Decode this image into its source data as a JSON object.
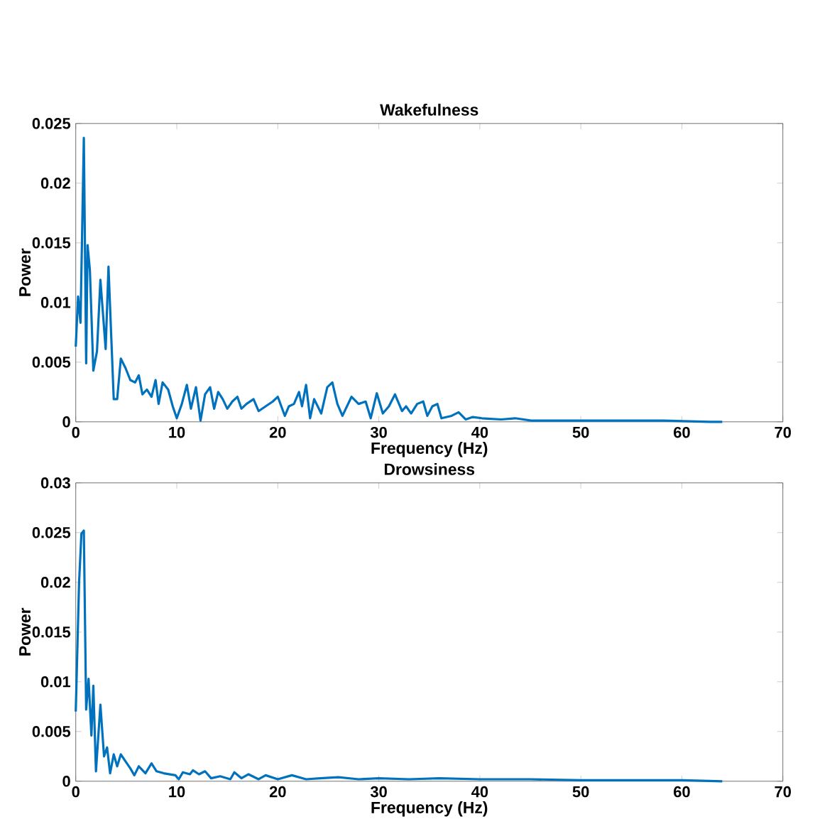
{
  "chart_data": [
    {
      "type": "line",
      "title": "Wakefulness",
      "xlabel": "Frequency (Hz)",
      "ylabel": "Power",
      "x": [
        0,
        0.23,
        0.47,
        0.8,
        1.03,
        1.17,
        1.4,
        1.74,
        2.1,
        2.44,
        2.96,
        3.24,
        3.76,
        4.1,
        4.46,
        4.93,
        5.4,
        5.87,
        6.24,
        6.6,
        7.04,
        7.5,
        7.9,
        8.2,
        8.6,
        9.15,
        9.6,
        10.0,
        10.5,
        11.0,
        11.4,
        11.9,
        12.35,
        12.8,
        13.3,
        13.7,
        14.1,
        14.55,
        15.0,
        15.5,
        16.0,
        16.4,
        16.9,
        17.6,
        18.1,
        18.8,
        19.5,
        20.0,
        20.7,
        21.1,
        21.6,
        22.1,
        22.4,
        22.8,
        23.2,
        23.6,
        24.3,
        24.9,
        25.4,
        25.9,
        26.4,
        27.3,
        28.0,
        28.7,
        29.2,
        29.8,
        30.4,
        31.0,
        31.6,
        32.3,
        32.7,
        33.2,
        33.8,
        34.4,
        34.8,
        35.3,
        35.8,
        36.2,
        37.2,
        37.9,
        38.6,
        39.3,
        40.2,
        42.1,
        43.5,
        45.1,
        47.4,
        49.3,
        53.5,
        58.2,
        62.8,
        64
      ],
      "series": [
        {
          "color": "#0072bd",
          "values": [
            0.0063,
            0.0105,
            0.0083,
            0.0238,
            0.0049,
            0.0148,
            0.0127,
            0.0043,
            0.0059,
            0.0119,
            0.0061,
            0.013,
            0.0019,
            0.0019,
            0.0053,
            0.0045,
            0.0035,
            0.0033,
            0.0039,
            0.0023,
            0.0027,
            0.0021,
            0.0035,
            0.0015,
            0.0033,
            0.0027,
            0.0013,
            0.0003,
            0.0015,
            0.0031,
            0.0011,
            0.0029,
            0.0001,
            0.0023,
            0.0029,
            0.0011,
            0.0025,
            0.0019,
            0.0011,
            0.0017,
            0.0021,
            0.0011,
            0.0015,
            0.0019,
            0.0009,
            0.0013,
            0.0017,
            0.0021,
            0.0005,
            0.0013,
            0.0015,
            0.0025,
            0.0013,
            0.0031,
            0.0003,
            0.0019,
            0.0007,
            0.0029,
            0.0033,
            0.0015,
            0.0005,
            0.0021,
            0.0015,
            0.0017,
            0.0003,
            0.0024,
            0.0007,
            0.0013,
            0.0023,
            0.0009,
            0.0013,
            0.0007,
            0.0015,
            0.0017,
            0.0005,
            0.0013,
            0.0015,
            0.0003,
            0.0005,
            0.0008,
            0.0002,
            0.0004,
            0.0003,
            0.0002,
            0.0003,
            0.0001,
            0.0001,
            0.0001,
            0.0001,
            0.0001,
            0,
            0
          ]
        }
      ],
      "xlim": [
        0,
        70
      ],
      "ylim": [
        0,
        0.025
      ],
      "xticks": [
        0,
        10,
        20,
        30,
        40,
        50,
        60,
        70
      ],
      "yticks": [
        0,
        0.005,
        0.01,
        0.015,
        0.02,
        0.025
      ]
    },
    {
      "type": "line",
      "title": "Drowsiness",
      "xlabel": "Frequency (Hz)",
      "ylabel": "Power",
      "x": [
        0,
        0.33,
        0.56,
        0.8,
        1.03,
        1.27,
        1.55,
        1.74,
        2.0,
        2.44,
        2.8,
        3.1,
        3.4,
        3.76,
        4.1,
        4.46,
        4.93,
        5.4,
        5.8,
        6.24,
        6.9,
        7.5,
        8.0,
        8.7,
        9.86,
        10.2,
        10.6,
        11.3,
        11.6,
        12.2,
        12.8,
        13.4,
        14.3,
        15.3,
        15.7,
        16.4,
        17.1,
        18.1,
        18.8,
        20.0,
        21.4,
        22.8,
        24.2,
        26,
        28,
        30,
        33,
        36,
        40,
        45,
        50,
        55,
        60,
        64
      ],
      "series": [
        {
          "color": "#0072bd",
          "values": [
            0.007,
            0.02,
            0.0249,
            0.0252,
            0.0072,
            0.0103,
            0.0046,
            0.0096,
            0.001,
            0.0077,
            0.0025,
            0.0034,
            0.0008,
            0.0027,
            0.0015,
            0.0027,
            0.002,
            0.0013,
            0.0006,
            0.0015,
            0.0008,
            0.0018,
            0.001,
            0.0008,
            0.0006,
            0.0002,
            0.0009,
            0.0007,
            0.0011,
            0.0007,
            0.001,
            0.0003,
            0.0005,
            0.0002,
            0.0009,
            0.0003,
            0.0007,
            0.0002,
            0.0006,
            0.0002,
            0.0006,
            0.0002,
            0.0003,
            0.0004,
            0.0002,
            0.0003,
            0.0002,
            0.0003,
            0.0002,
            0.0002,
            0.0001,
            0.0001,
            0.0001,
            0
          ]
        }
      ],
      "xlim": [
        0,
        70
      ],
      "ylim": [
        0,
        0.03
      ],
      "xticks": [
        0,
        10,
        20,
        30,
        40,
        50,
        60,
        70
      ],
      "yticks": [
        0,
        0.005,
        0.01,
        0.015,
        0.02,
        0.025,
        0.03
      ]
    }
  ]
}
